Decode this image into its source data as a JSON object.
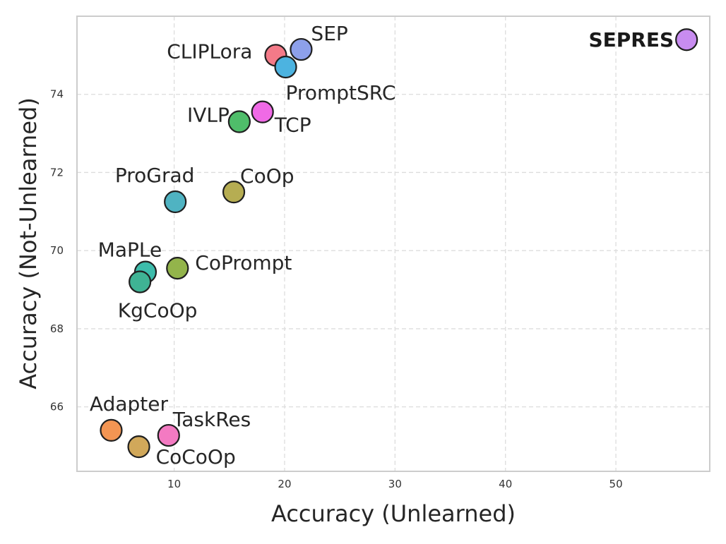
{
  "chart_data": {
    "type": "scatter",
    "xlabel": "Accuracy (Unlearned)",
    "ylabel": "Accuracy (Not-Unlearned)",
    "xlim": [
      1.2,
      58.5
    ],
    "ylim": [
      64.35,
      76.0
    ],
    "xticks": [
      10,
      20,
      30,
      40,
      50
    ],
    "yticks": [
      66,
      68,
      70,
      72,
      74
    ],
    "grid": true,
    "points": [
      {
        "label": "SEPRES",
        "x": 56.4,
        "y": 75.4,
        "color": "#c88cf0",
        "bold": true
      },
      {
        "label": "SEP",
        "x": 21.5,
        "y": 75.15,
        "color": "#8da0ea"
      },
      {
        "label": "CLIPLora",
        "x": 19.2,
        "y": 75.0,
        "color": "#f47a88"
      },
      {
        "label": "PromptSRC",
        "x": 20.1,
        "y": 74.7,
        "color": "#4cb3e0"
      },
      {
        "label": "TCP",
        "x": 18.0,
        "y": 73.55,
        "color": "#f06ae6"
      },
      {
        "label": "IVLP",
        "x": 15.9,
        "y": 73.3,
        "color": "#4fbd6a"
      },
      {
        "label": "CoOp",
        "x": 15.4,
        "y": 71.5,
        "color": "#b6ad52"
      },
      {
        "label": "ProGrad",
        "x": 10.1,
        "y": 71.25,
        "color": "#4fb3c2"
      },
      {
        "label": "CoPrompt",
        "x": 10.3,
        "y": 69.55,
        "color": "#93b44b"
      },
      {
        "label": "MaPLe",
        "x": 7.4,
        "y": 69.45,
        "color": "#3dbcab"
      },
      {
        "label": "KgCoOp",
        "x": 6.9,
        "y": 69.2,
        "color": "#3fb394"
      },
      {
        "label": "Adapter",
        "x": 4.3,
        "y": 65.4,
        "color": "#f39553"
      },
      {
        "label": "TaskRes",
        "x": 9.5,
        "y": 65.27,
        "color": "#f37ac2"
      },
      {
        "label": "CoCoOp",
        "x": 6.8,
        "y": 64.98,
        "color": "#d1a85a"
      }
    ]
  }
}
